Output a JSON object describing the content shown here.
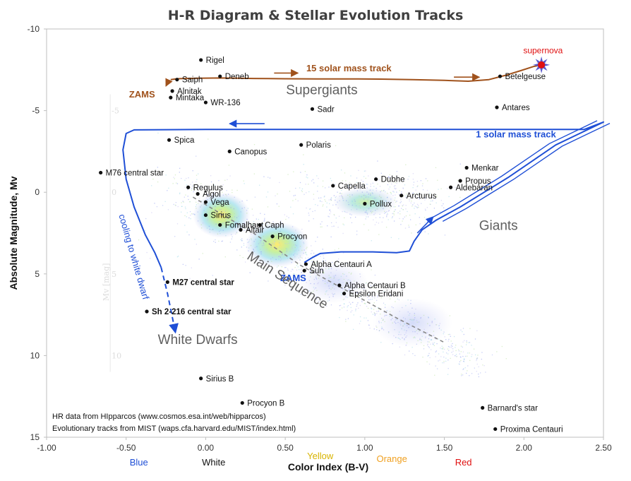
{
  "chart_data": {
    "type": "scatter",
    "title": "H-R Diagram & Stellar Evolution Tracks",
    "xlabel": "Color Index (B-V)",
    "ylabel": "Absolute Magnitude, Mv",
    "xlim": [
      -1.0,
      2.5
    ],
    "ylim": [
      15,
      -10
    ],
    "x_inverted": false,
    "y_inverted": true,
    "grid": false,
    "x_ticks": [
      "-1.00",
      "-0.50",
      "0.00",
      "0.50",
      "1.00",
      "1.50",
      "2.00",
      "2.50"
    ],
    "x_tick_values": [
      -1.0,
      -0.5,
      0.0,
      0.5,
      1.0,
      1.5,
      2.0,
      2.5
    ],
    "y_ticks": [
      "-10",
      "-5",
      "0",
      "5",
      "10",
      "15"
    ],
    "y_tick_values": [
      -10,
      -5,
      0,
      5,
      10,
      15
    ],
    "color_names": [
      {
        "label": "Blue",
        "x": -0.42,
        "color": "#1f4fd6"
      },
      {
        "label": "White",
        "x": 0.05,
        "color": "#111111"
      },
      {
        "label": "Yellow",
        "x": 0.72,
        "color": "#d8b400"
      },
      {
        "label": "Orange",
        "x": 1.17,
        "color": "#f0a020"
      },
      {
        "label": "Red",
        "x": 1.62,
        "color": "#e01010"
      }
    ],
    "stars": [
      {
        "name": "Rigel",
        "x": -0.03,
        "y": -8.1,
        "bold": false
      },
      {
        "name": "Saiph",
        "x": -0.18,
        "y": -6.9,
        "bold": false
      },
      {
        "name": "Deneb",
        "x": 0.09,
        "y": -7.1,
        "bold": false
      },
      {
        "name": "Alnitak",
        "x": -0.21,
        "y": -6.2,
        "bold": false
      },
      {
        "name": "Mintaka",
        "x": -0.22,
        "y": -5.8,
        "bold": false
      },
      {
        "name": "WR-136",
        "x": 0.0,
        "y": -5.5,
        "bold": false
      },
      {
        "name": "Sadr",
        "x": 0.67,
        "y": -5.1,
        "bold": false
      },
      {
        "name": "Betelgeuse",
        "x": 1.85,
        "y": -7.1,
        "bold": false
      },
      {
        "name": "Antares",
        "x": 1.83,
        "y": -5.2,
        "bold": false
      },
      {
        "name": "Spica",
        "x": -0.23,
        "y": -3.2,
        "bold": false
      },
      {
        "name": "Canopus",
        "x": 0.15,
        "y": -2.5,
        "bold": false
      },
      {
        "name": "Polaris",
        "x": 0.6,
        "y": -2.9,
        "bold": false
      },
      {
        "name": "M76 central star",
        "x": -0.66,
        "y": -1.2,
        "bold": false
      },
      {
        "name": "Menkar",
        "x": 1.64,
        "y": -1.5,
        "bold": false
      },
      {
        "name": "Dubhe",
        "x": 1.07,
        "y": -0.8,
        "bold": false
      },
      {
        "name": "Propus",
        "x": 1.6,
        "y": -0.7,
        "bold": false
      },
      {
        "name": "Capella",
        "x": 0.8,
        "y": -0.4,
        "bold": false
      },
      {
        "name": "Aldebaran",
        "x": 1.54,
        "y": -0.3,
        "bold": false
      },
      {
        "name": "Arcturus",
        "x": 1.23,
        "y": 0.2,
        "bold": false
      },
      {
        "name": "Pollux",
        "x": 1.0,
        "y": 0.7,
        "bold": false
      },
      {
        "name": "Regulus",
        "x": -0.11,
        "y": -0.3,
        "bold": false
      },
      {
        "name": "Algol",
        "x": -0.05,
        "y": 0.1,
        "bold": false
      },
      {
        "name": "Vega",
        "x": 0.0,
        "y": 0.6,
        "bold": false
      },
      {
        "name": "Sirius",
        "x": 0.0,
        "y": 1.4,
        "bold": false
      },
      {
        "name": "Fomalhaut",
        "x": 0.09,
        "y": 2.0,
        "bold": false
      },
      {
        "name": "Caph",
        "x": 0.34,
        "y": 2.0,
        "bold": false
      },
      {
        "name": "Altair",
        "x": 0.22,
        "y": 2.3,
        "bold": false
      },
      {
        "name": "Procyon",
        "x": 0.42,
        "y": 2.7,
        "bold": false
      },
      {
        "name": "Alpha Centauri A",
        "x": 0.63,
        "y": 4.4,
        "bold": false
      },
      {
        "name": "Sun",
        "x": 0.62,
        "y": 4.8,
        "bold": false
      },
      {
        "name": "M27 central star",
        "x": -0.24,
        "y": 5.5,
        "bold": true
      },
      {
        "name": "Alpha Centauri B",
        "x": 0.84,
        "y": 5.7,
        "bold": false
      },
      {
        "name": "Epsilon Eridani",
        "x": 0.87,
        "y": 6.2,
        "bold": false
      },
      {
        "name": "Sh 2-216 central star",
        "x": -0.37,
        "y": 7.3,
        "bold": true
      },
      {
        "name": "Sirius B",
        "x": -0.03,
        "y": 11.4,
        "bold": false
      },
      {
        "name": "Procyon B",
        "x": 0.23,
        "y": 12.9,
        "bold": false
      },
      {
        "name": "Barnard's star",
        "x": 1.74,
        "y": 13.2,
        "bold": false
      },
      {
        "name": "Proxima Centauri",
        "x": 1.82,
        "y": 14.5,
        "bold": false
      }
    ],
    "series": [
      {
        "name": "15 solar mass track",
        "color": "#a0521c",
        "points": [
          [
            -0.22,
            -6.9
          ],
          [
            -0.18,
            -6.95
          ],
          [
            -0.05,
            -6.98
          ],
          [
            0.1,
            -7.0
          ],
          [
            0.3,
            -6.97
          ],
          [
            0.5,
            -6.95
          ],
          [
            0.7,
            -6.94
          ],
          [
            0.9,
            -6.94
          ],
          [
            1.1,
            -6.93
          ],
          [
            1.3,
            -6.9
          ],
          [
            1.5,
            -6.85
          ],
          [
            1.65,
            -6.8
          ],
          [
            1.78,
            -6.9
          ],
          [
            1.88,
            -7.15
          ],
          [
            1.98,
            -7.45
          ],
          [
            2.06,
            -7.7
          ],
          [
            2.11,
            -7.8
          ]
        ]
      },
      {
        "name": "1 solar mass track",
        "color": "#1f4fd6",
        "points": [
          [
            0.62,
            4.3
          ],
          [
            0.67,
            4.0
          ],
          [
            0.72,
            3.75
          ],
          [
            0.85,
            3.65
          ],
          [
            1.05,
            3.65
          ],
          [
            1.2,
            3.7
          ],
          [
            1.28,
            3.6
          ],
          [
            1.31,
            3.0
          ],
          [
            1.36,
            2.3
          ],
          [
            1.45,
            1.7
          ],
          [
            1.6,
            0.9
          ],
          [
            1.75,
            0.0
          ],
          [
            1.9,
            -0.9
          ],
          [
            2.05,
            -1.9
          ],
          [
            2.2,
            -2.9
          ],
          [
            2.35,
            -3.6
          ],
          [
            2.5,
            -4.3
          ],
          [
            2.38,
            -3.85
          ],
          [
            2.0,
            -3.85
          ],
          [
            1.0,
            -3.85
          ],
          [
            0.0,
            -3.85
          ],
          [
            -0.45,
            -3.82
          ],
          [
            -0.5,
            -3.6
          ],
          [
            -0.52,
            -2.6
          ],
          [
            -0.5,
            -0.8
          ],
          [
            -0.45,
            0.9
          ],
          [
            -0.38,
            2.6
          ],
          [
            -0.32,
            3.7
          ],
          [
            -0.28,
            4.6
          ]
        ]
      },
      {
        "name": "cooling to white dwarf",
        "color": "#1f4fd6",
        "dashed": true,
        "points": [
          [
            -0.28,
            4.6
          ],
          [
            -0.24,
            6.2
          ],
          [
            -0.19,
            8.6
          ]
        ]
      },
      {
        "name": "",
        "color": "#888888",
        "dashed": true,
        "points": [
          [
            -0.08,
            0.3
          ],
          [
            0.3,
            2.5
          ],
          [
            0.6,
            4.5
          ],
          [
            0.9,
            6.1
          ],
          [
            1.2,
            7.7
          ],
          [
            1.5,
            9.2
          ]
        ]
      }
    ],
    "annotations": [
      {
        "text": "15 solar mass track",
        "x": 0.9,
        "y": -7.4,
        "color": "#a0521c",
        "role": "track"
      },
      {
        "text": "1 solar mass track",
        "x": 1.95,
        "y": -3.35,
        "color": "#1f4fd6",
        "role": "track"
      },
      {
        "text": "ZAMS",
        "x": -0.4,
        "y": -5.8,
        "color": "#a0521c",
        "role": "track"
      },
      {
        "text": "ZAMS",
        "x": 0.55,
        "y": 5.45,
        "color": "#1f4fd6",
        "role": "track"
      },
      {
        "text": "supernova",
        "x": 2.12,
        "y": -8.5,
        "color": "#e01010",
        "role": "plain"
      },
      {
        "text": "cooling to white dwarf",
        "x": -0.47,
        "y": 4.0,
        "color": "#1f4fd6",
        "role": "rotated"
      },
      {
        "text": "Supergiants",
        "x": 0.73,
        "y": -6.0,
        "color": "#606060",
        "role": "region"
      },
      {
        "text": "Giants",
        "x": 1.84,
        "y": 2.3,
        "color": "#606060",
        "role": "region"
      },
      {
        "text": "White Dwarfs",
        "x": -0.05,
        "y": 9.3,
        "color": "#606060",
        "role": "region"
      },
      {
        "text": "Main Sequence",
        "x": 0.5,
        "y": 5.6,
        "color": "#606060",
        "role": "region-rotated"
      }
    ],
    "notes": [
      "HR data from HIpparcos (www.cosmos.esa.int/web/hipparcos)",
      "Evolutionary tracks from MIST (waps.cfa.harvard.edu/MIST/index.html)"
    ],
    "faint_axis_label": "Mv [mag]",
    "faint_ticks": [
      "-5",
      "0",
      "5",
      "10"
    ],
    "faint_tick_values": [
      -5,
      0,
      5,
      10
    ]
  }
}
